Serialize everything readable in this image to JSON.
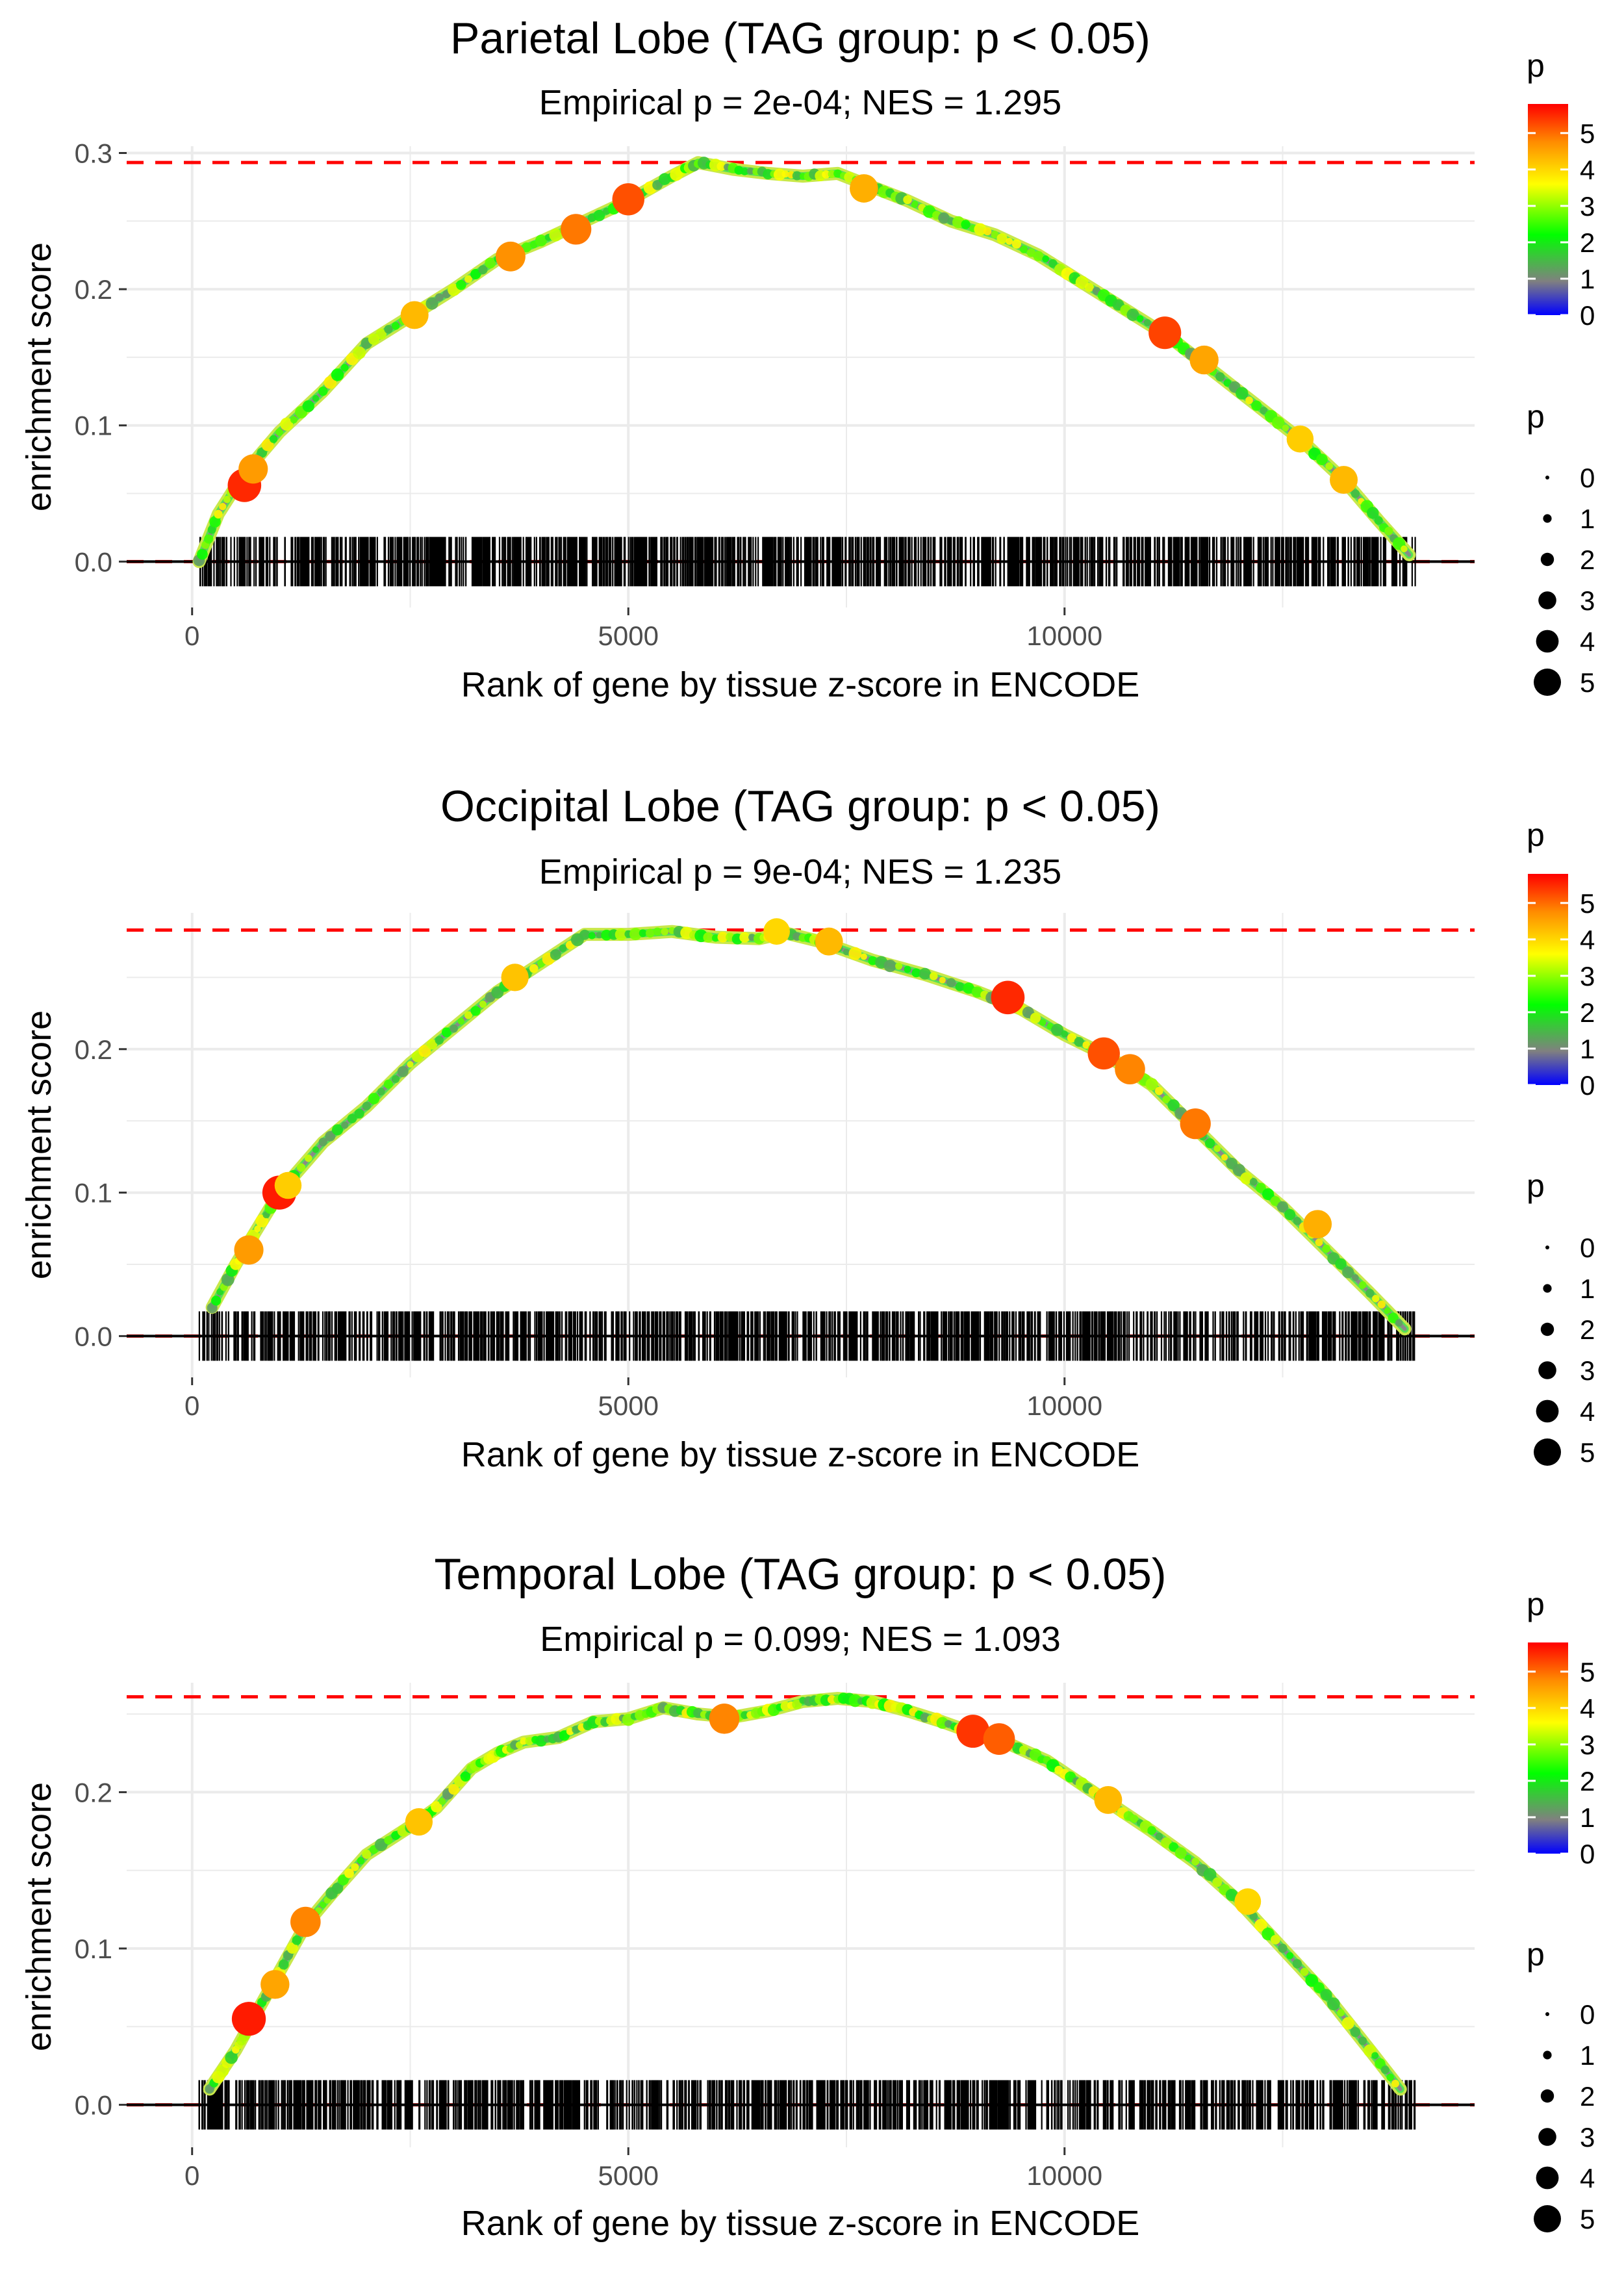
{
  "chart_data": [
    {
      "type": "line",
      "title": "Parietal Lobe (TAG group: p < 0.05)",
      "subtitle": "Empirical p = 2e-04; NES = 1.295",
      "xlabel": "Rank of gene by tissue z-score in ENCODE",
      "ylabel": "enrichment score",
      "xlim": [
        -750,
        14700
      ],
      "ylim": [
        -0.0337,
        0.305
      ],
      "xticks": [
        0,
        5000,
        10000
      ],
      "xtick_labels": [
        "0",
        "5000",
        "10000"
      ],
      "yticks": [
        0.0,
        0.1,
        0.2,
        0.3
      ],
      "ytick_labels": [
        "0.0",
        "0.1",
        "0.2",
        "0.3"
      ],
      "max_es": 0.293,
      "gene_range": [
        80,
        14020
      ],
      "gene_count": 1100,
      "curve": {
        "x": [
          80,
          300,
          600,
          1000,
          1500,
          2000,
          2500,
          3000,
          3500,
          4000,
          4500,
          5000,
          5500,
          5800,
          6200,
          6600,
          7000,
          7400,
          7800,
          8200,
          8700,
          9200,
          9700,
          10200,
          10700,
          11200,
          11700,
          12200,
          12700,
          13200,
          13600,
          13950
        ],
        "y": [
          0.0,
          0.035,
          0.065,
          0.095,
          0.125,
          0.16,
          0.18,
          0.2,
          0.222,
          0.235,
          0.25,
          0.265,
          0.283,
          0.293,
          0.288,
          0.285,
          0.283,
          0.285,
          0.275,
          0.265,
          0.25,
          0.24,
          0.225,
          0.205,
          0.185,
          0.165,
          0.14,
          0.115,
          0.09,
          0.06,
          0.03,
          0.005
        ]
      },
      "highlight_points": [
        {
          "x": 600,
          "y": 0.056,
          "p": 5.5
        },
        {
          "x": 700,
          "y": 0.068,
          "p": 4.6
        },
        {
          "x": 2550,
          "y": 0.181,
          "p": 4.3
        },
        {
          "x": 3650,
          "y": 0.224,
          "p": 4.7
        },
        {
          "x": 4400,
          "y": 0.244,
          "p": 4.9
        },
        {
          "x": 5000,
          "y": 0.266,
          "p": 5.2
        },
        {
          "x": 7700,
          "y": 0.274,
          "p": 4.4
        },
        {
          "x": 11150,
          "y": 0.168,
          "p": 5.3
        },
        {
          "x": 11600,
          "y": 0.148,
          "p": 4.5
        },
        {
          "x": 12700,
          "y": 0.09,
          "p": 4.1
        },
        {
          "x": 13200,
          "y": 0.06,
          "p": 4.3
        }
      ],
      "legend_color": {
        "title": "p",
        "ticks": [
          0,
          1,
          2,
          3,
          4,
          5
        ],
        "range": [
          0,
          5.8
        ]
      },
      "legend_size": {
        "title": "p",
        "values": [
          0,
          1,
          2,
          3,
          4,
          5
        ],
        "labels": [
          "0",
          "1",
          "2",
          "3",
          "4",
          "5"
        ]
      }
    },
    {
      "type": "line",
      "title": "Occipital Lobe (TAG group: p < 0.05)",
      "subtitle": "Empirical p = 9e-04; NES = 1.235",
      "xlabel": "Rank of gene by tissue z-score in ENCODE",
      "ylabel": "enrichment score",
      "xlim": [
        -750,
        14700
      ],
      "ylim": [
        -0.0288,
        0.295
      ],
      "xticks": [
        0,
        5000,
        10000
      ],
      "xtick_labels": [
        "0",
        "5000",
        "10000"
      ],
      "yticks": [
        0.0,
        0.1,
        0.2
      ],
      "ytick_labels": [
        "0.0",
        "0.1",
        "0.2"
      ],
      "max_es": 0.283,
      "gene_range": [
        80,
        14020
      ],
      "gene_count": 1100,
      "curve": {
        "x": [
          230,
          500,
          700,
          1000,
          1500,
          2000,
          2500,
          3000,
          3500,
          4000,
          4500,
          5000,
          5500,
          6000,
          6500,
          6800,
          7200,
          7800,
          8400,
          9000,
          9500,
          10000,
          10500,
          11000,
          11500,
          12000,
          12500,
          13000,
          13500,
          13900
        ],
        "y": [
          0.02,
          0.05,
          0.07,
          0.1,
          0.135,
          0.16,
          0.19,
          0.215,
          0.24,
          0.26,
          0.28,
          0.28,
          0.282,
          0.278,
          0.277,
          0.281,
          0.275,
          0.262,
          0.252,
          0.24,
          0.228,
          0.21,
          0.195,
          0.175,
          0.145,
          0.115,
          0.09,
          0.06,
          0.03,
          0.005
        ]
      },
      "highlight_points": [
        {
          "x": 650,
          "y": 0.06,
          "p": 4.6
        },
        {
          "x": 1000,
          "y": 0.1,
          "p": 5.6
        },
        {
          "x": 1100,
          "y": 0.105,
          "p": 4.1
        },
        {
          "x": 3700,
          "y": 0.25,
          "p": 4.2
        },
        {
          "x": 6700,
          "y": 0.282,
          "p": 4.0
        },
        {
          "x": 7300,
          "y": 0.275,
          "p": 4.3
        },
        {
          "x": 9350,
          "y": 0.236,
          "p": 5.5
        },
        {
          "x": 10450,
          "y": 0.197,
          "p": 5.2
        },
        {
          "x": 10750,
          "y": 0.186,
          "p": 4.8
        },
        {
          "x": 11500,
          "y": 0.148,
          "p": 4.9
        },
        {
          "x": 12900,
          "y": 0.078,
          "p": 4.4
        }
      ],
      "legend_color": {
        "title": "p",
        "ticks": [
          0,
          1,
          2,
          3,
          4,
          5
        ],
        "range": [
          0,
          5.8
        ]
      },
      "legend_size": {
        "title": "p",
        "values": [
          0,
          1,
          2,
          3,
          4,
          5
        ],
        "labels": [
          "0",
          "1",
          "2",
          "3",
          "4",
          "5"
        ]
      }
    },
    {
      "type": "line",
      "title": "Temporal Lobe (TAG group: p < 0.05)",
      "subtitle": "Empirical p = 0.099; NES = 1.093",
      "xlabel": "Rank of gene by tissue z-score in ENCODE",
      "ylabel": "enrichment score",
      "xlim": [
        -750,
        14700
      ],
      "ylim": [
        -0.0272,
        0.27
      ],
      "xticks": [
        0,
        5000,
        10000
      ],
      "xtick_labels": [
        "0",
        "5000",
        "10000"
      ],
      "yticks": [
        0.0,
        0.1,
        0.2
      ],
      "ytick_labels": [
        "0.0",
        "0.1",
        "0.2"
      ],
      "max_es": 0.261,
      "gene_range": [
        80,
        14020
      ],
      "gene_count": 1100,
      "curve": {
        "x": [
          200,
          500,
          700,
          1000,
          1300,
          1600,
          2000,
          2500,
          2800,
          3200,
          3500,
          3800,
          4200,
          4600,
          5000,
          5400,
          5800,
          6200,
          6600,
          7000,
          7400,
          7800,
          8200,
          8600,
          9000,
          9400,
          9800,
          10200,
          10600,
          11000,
          11500,
          12000,
          12500,
          13000,
          13500,
          13850
        ],
        "y": [
          0.01,
          0.035,
          0.055,
          0.085,
          0.115,
          0.135,
          0.16,
          0.178,
          0.19,
          0.215,
          0.225,
          0.232,
          0.235,
          0.245,
          0.247,
          0.254,
          0.25,
          0.248,
          0.252,
          0.258,
          0.26,
          0.258,
          0.252,
          0.245,
          0.237,
          0.23,
          0.22,
          0.205,
          0.19,
          0.175,
          0.155,
          0.13,
          0.1,
          0.07,
          0.035,
          0.01
        ]
      },
      "highlight_points": [
        {
          "x": 650,
          "y": 0.055,
          "p": 5.6
        },
        {
          "x": 950,
          "y": 0.077,
          "p": 4.5
        },
        {
          "x": 1300,
          "y": 0.117,
          "p": 4.8
        },
        {
          "x": 2600,
          "y": 0.181,
          "p": 4.2
        },
        {
          "x": 6100,
          "y": 0.247,
          "p": 4.8
        },
        {
          "x": 8950,
          "y": 0.239,
          "p": 5.4
        },
        {
          "x": 9250,
          "y": 0.234,
          "p": 5.1
        },
        {
          "x": 10500,
          "y": 0.195,
          "p": 4.3
        },
        {
          "x": 12100,
          "y": 0.13,
          "p": 4.0
        }
      ],
      "legend_color": {
        "title": "p",
        "ticks": [
          0,
          1,
          2,
          3,
          4,
          5
        ],
        "range": [
          0,
          5.8
        ]
      },
      "legend_size": {
        "title": "p",
        "values": [
          0,
          1,
          2,
          3,
          4,
          5
        ],
        "labels": [
          "0",
          "1",
          "2",
          "3",
          "4",
          "5"
        ]
      }
    }
  ],
  "colors": {
    "dashed_line": "#ff0000",
    "grid": "#ebebeb",
    "curve_base": "#8a8a8a",
    "scale": [
      "#0000ff",
      "#808080",
      "#00ff00",
      "#ffff00",
      "#ff8c00",
      "#ff0000"
    ]
  }
}
